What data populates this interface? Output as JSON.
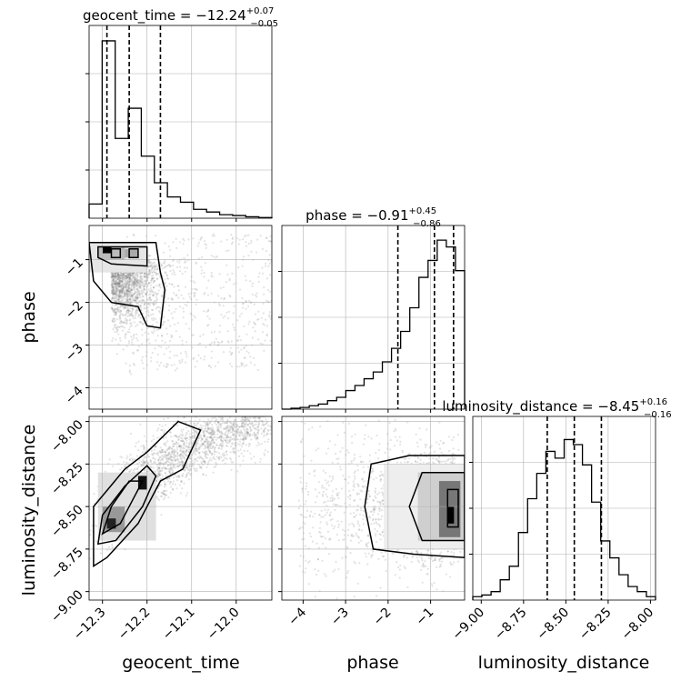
{
  "chart_data": {
    "type": "corner",
    "parameters": [
      {
        "name": "geocent_time",
        "range": [
          -12.33,
          -11.92
        ],
        "ticks": [
          -12.3,
          -12.2,
          -12.1,
          -12.0
        ],
        "tick_labels": [
          "−12.3",
          "−12.2",
          "−12.1",
          "−12.0"
        ],
        "title": {
          "prefix": "geocent_time = ",
          "value": "−12.24",
          "upper": "+0.07",
          "lower": "−0.05"
        },
        "quantiles": [
          -12.29,
          -12.24,
          -12.17
        ],
        "hist": [
          0.08,
          1.0,
          0.45,
          0.62,
          0.35,
          0.2,
          0.12,
          0.09,
          0.05,
          0.035,
          0.02,
          0.015,
          0.008,
          0.004
        ]
      },
      {
        "name": "phase",
        "range": [
          -4.5,
          -0.2
        ],
        "ticks": [
          -4,
          -3,
          -2,
          -1
        ],
        "tick_labels": [
          "−4",
          "−3",
          "−2",
          "−1"
        ],
        "title": {
          "prefix": "phase = ",
          "value": "−0.91",
          "upper": "+0.45",
          "lower": "−0.86"
        },
        "quantiles": [
          -1.77,
          -0.91,
          -0.46
        ],
        "hist": [
          0.0,
          0.005,
          0.01,
          0.02,
          0.03,
          0.05,
          0.07,
          0.11,
          0.14,
          0.18,
          0.22,
          0.28,
          0.36,
          0.46,
          0.6,
          0.78,
          0.88,
          1.0,
          0.96,
          0.82
        ]
      },
      {
        "name": "luminosity_distance",
        "range": [
          -9.05,
          -7.97
        ],
        "ticks": [
          -9.0,
          -8.75,
          -8.5,
          -8.25,
          -8.0
        ],
        "tick_labels": [
          "−9.00",
          "−8.75",
          "−8.50",
          "−8.25",
          "−8.00"
        ],
        "title": {
          "prefix": "luminosity_distance = ",
          "value": "−8.45",
          "upper": "+0.16",
          "lower": "−0.16"
        },
        "quantiles": [
          -8.61,
          -8.45,
          -8.29
        ],
        "hist": [
          0.02,
          0.03,
          0.05,
          0.12,
          0.2,
          0.4,
          0.6,
          0.75,
          0.88,
          0.84,
          0.95,
          0.92,
          0.8,
          0.58,
          0.35,
          0.25,
          0.15,
          0.08,
          0.05,
          0.02
        ]
      }
    ],
    "pairs": [
      {
        "x": "geocent_time",
        "y": "phase",
        "peak": [
          -12.3,
          -0.75
        ],
        "points": "dense lower-left, scattered toward the upper right"
      },
      {
        "x": "geocent_time",
        "y": "luminosity_distance",
        "peak": [
          -12.28,
          -8.6
        ],
        "points": "positively correlated band"
      },
      {
        "x": "phase",
        "y": "luminosity_distance",
        "peak": [
          -0.6,
          -8.55
        ],
        "points": "concentrated at high phase"
      }
    ],
    "grid": true,
    "colors": {
      "line": "#000000",
      "points": "#7f7f7f",
      "grid": "#b0b0b0"
    }
  }
}
